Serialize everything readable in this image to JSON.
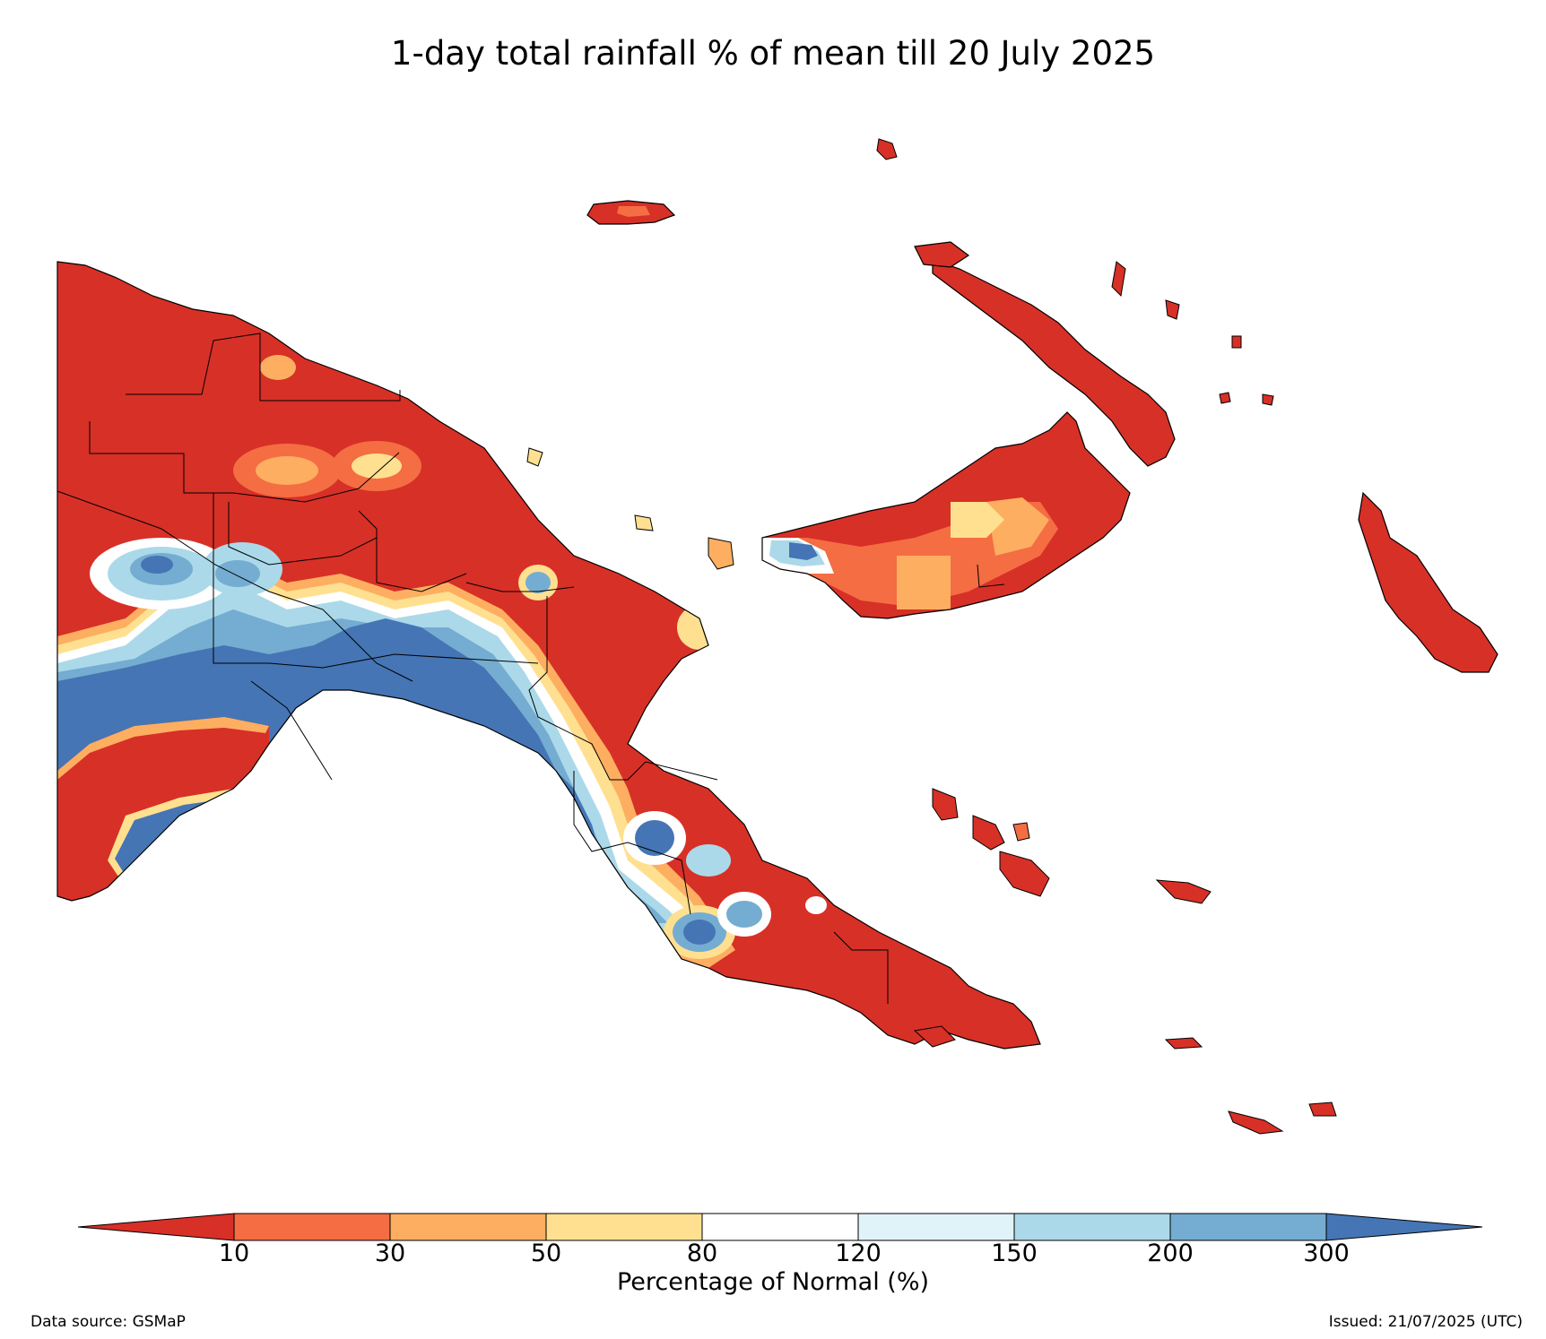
{
  "title": "1-day total rainfall % of mean till 20 July 2025",
  "colorbar": {
    "label": "Percentage of Normal (%)",
    "ticks": [
      "10",
      "30",
      "50",
      "80",
      "120",
      "150",
      "200",
      "300"
    ],
    "colors": {
      "below_10": "#d73027",
      "10_30": "#f46d43",
      "30_50": "#fdae61",
      "50_80": "#fee090",
      "80_120": "#ffffff",
      "120_150": "#e0f3f8",
      "150_200": "#abd9e9",
      "200_300": "#74add1",
      "above_300": "#4575b4"
    }
  },
  "footer": {
    "source": "Data source: GSMaP",
    "issued": "Issued: 21/07/2025 (UTC)"
  }
}
